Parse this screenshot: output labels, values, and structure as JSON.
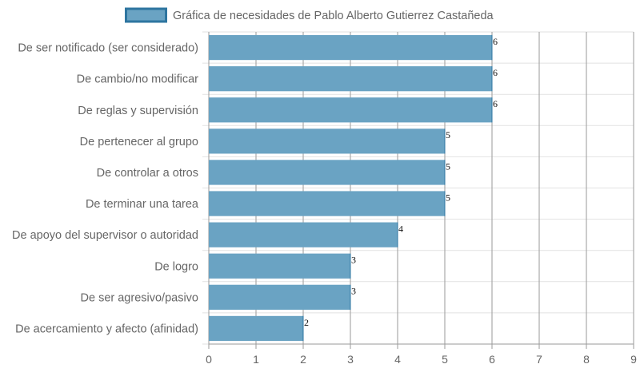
{
  "chart_data": {
    "type": "bar",
    "orientation": "horizontal",
    "categories": [
      "De ser notificado (ser considerado)",
      "De cambio/no modificar",
      "De reglas y supervisión",
      "De pertenecer al grupo",
      "De controlar a otros",
      "De terminar una tarea",
      "De apoyo del supervisor o autoridad",
      "De logro",
      "De ser agresivo/pasivo",
      "De acercamiento y afecto (afinidad)"
    ],
    "series": [
      {
        "name": "Gráfica de necesidades de Pablo Alberto Gutierrez Castañeda",
        "values": [
          6,
          6,
          6,
          5,
          5,
          5,
          4,
          3,
          3,
          2
        ],
        "color": "#6aa3c3",
        "border_color": "#2e75a0"
      }
    ],
    "xlim": [
      0,
      9
    ],
    "x_ticks": [
      0,
      1,
      2,
      3,
      4,
      5,
      6,
      7,
      8,
      9
    ],
    "grid": true,
    "legend": "top-center",
    "data_labels": true
  }
}
